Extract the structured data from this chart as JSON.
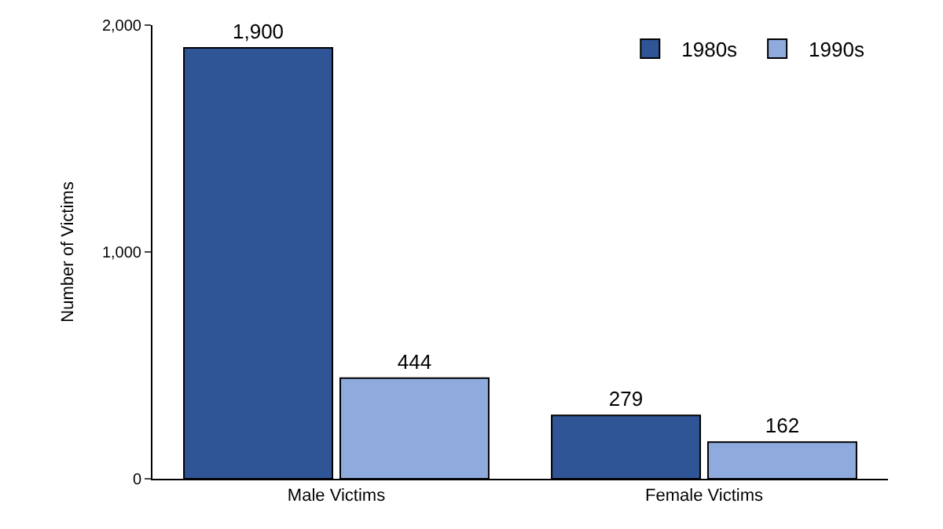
{
  "chart_data": {
    "type": "bar",
    "ylabel": "Number of Victims",
    "categories": [
      "Male Victims",
      "Female Victims"
    ],
    "series": [
      {
        "name": "1980s",
        "color": "#2f5597",
        "values": [
          1900,
          279
        ],
        "value_labels": [
          "1,900",
          "279"
        ]
      },
      {
        "name": "1990s",
        "color": "#8faadc",
        "values": [
          444,
          162
        ],
        "value_labels": [
          "444",
          "162"
        ]
      }
    ],
    "ylim": [
      0,
      2000
    ],
    "yticks": [
      0,
      {
        "value": 1000,
        "label": "1,000"
      },
      {
        "value": 2000,
        "label": "2,000"
      }
    ],
    "legend": "top right"
  }
}
